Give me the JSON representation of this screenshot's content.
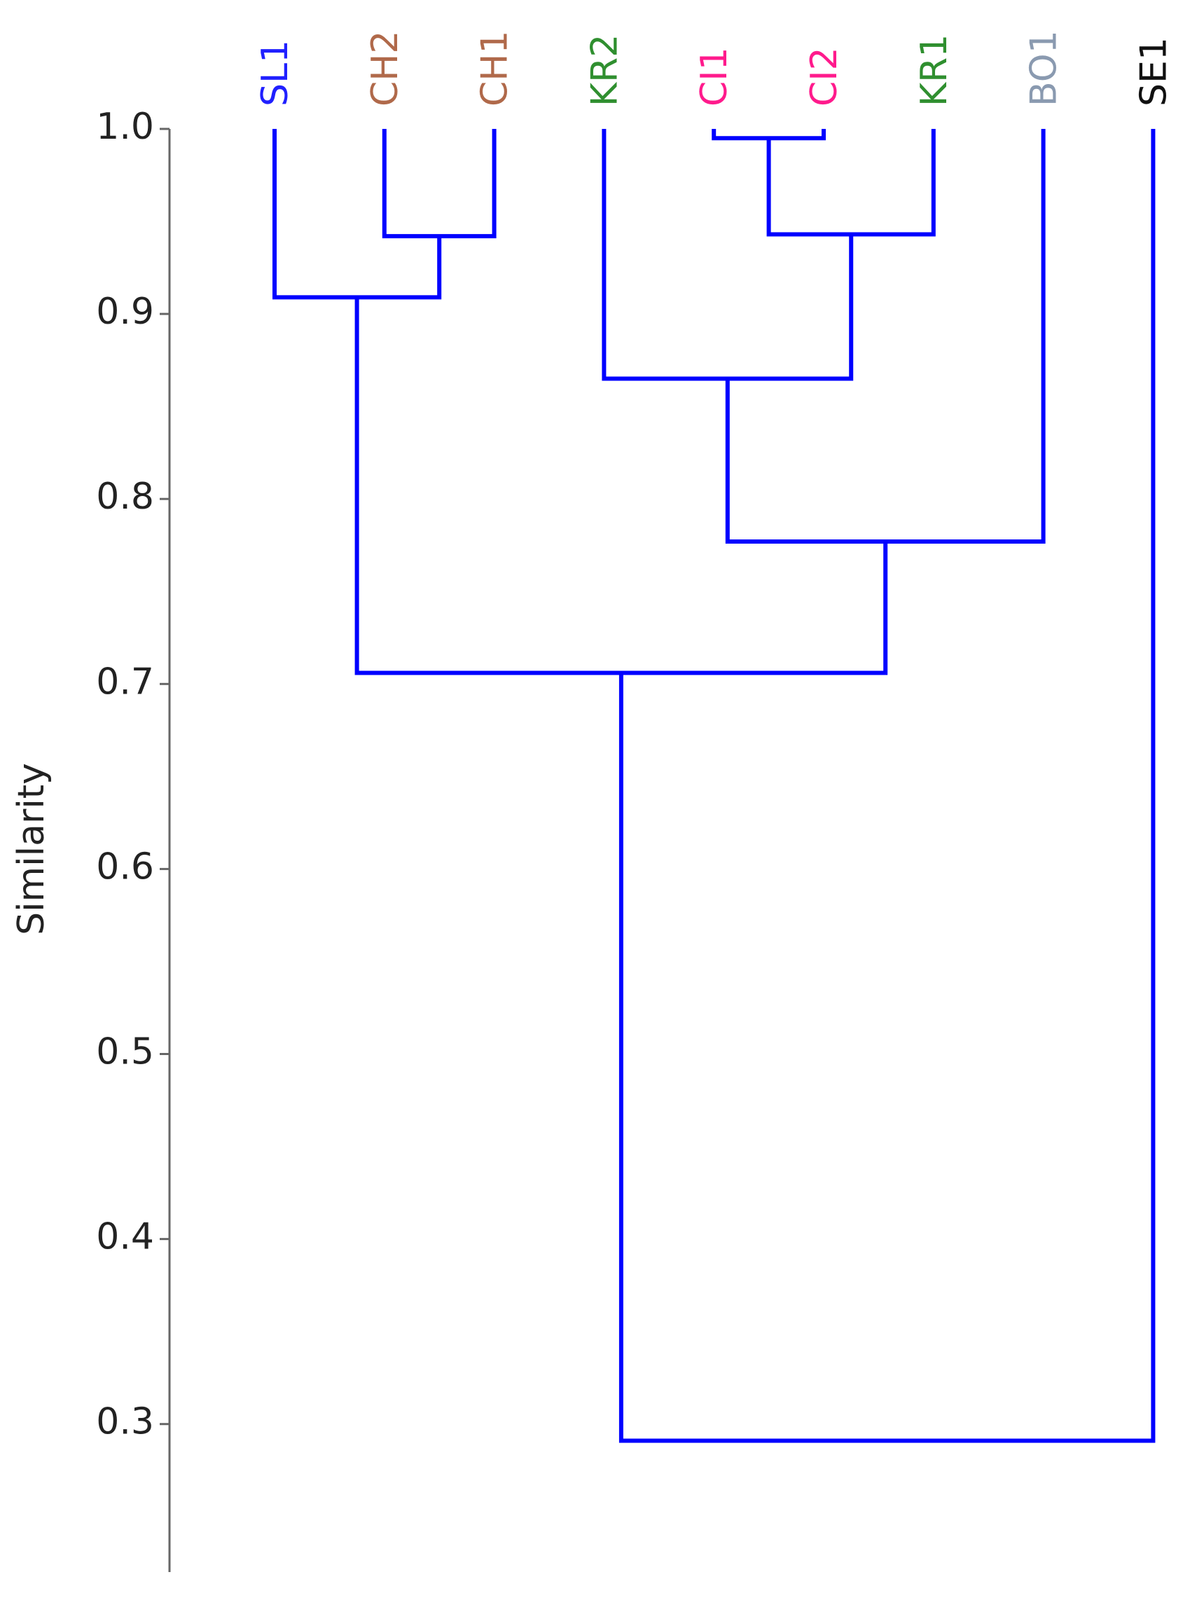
{
  "chart_data": {
    "type": "dendrogram",
    "y_label": "Similarity",
    "leaves": [
      {
        "name": "SL1",
        "color": "#2020ff"
      },
      {
        "name": "CH2",
        "color": "#b0694a"
      },
      {
        "name": "CH1",
        "color": "#b0694a"
      },
      {
        "name": "KR2",
        "color": "#2f8f2f"
      },
      {
        "name": "CI1",
        "color": "#ff1a8c"
      },
      {
        "name": "CI2",
        "color": "#ff1a8c"
      },
      {
        "name": "KR1",
        "color": "#2f8f2f"
      },
      {
        "name": "BO1",
        "color": "#8a9ab0"
      },
      {
        "name": "SE1",
        "color": "#111111"
      }
    ],
    "merges": [
      {
        "children": [
          4,
          5
        ],
        "value": 0.995
      },
      {
        "children": [
          1,
          2
        ],
        "value": 0.942
      },
      {
        "children": [
          9,
          6
        ],
        "value": 0.943
      },
      {
        "children": [
          0,
          10
        ],
        "value": 0.909
      },
      {
        "children": [
          3,
          11
        ],
        "value": 0.865
      },
      {
        "children": [
          13,
          7
        ],
        "value": 0.777
      },
      {
        "children": [
          12,
          14
        ],
        "value": 0.706
      },
      {
        "children": [
          15,
          8
        ],
        "value": 0.291
      }
    ],
    "link_color": "#0000ff",
    "ylim": [
      0.22,
      1.0
    ],
    "yticks": [
      {
        "value": 1.0,
        "label": "1.0"
      },
      0.9,
      0.8,
      0.7,
      0.6,
      0.5,
      0.4,
      0.3
    ]
  }
}
